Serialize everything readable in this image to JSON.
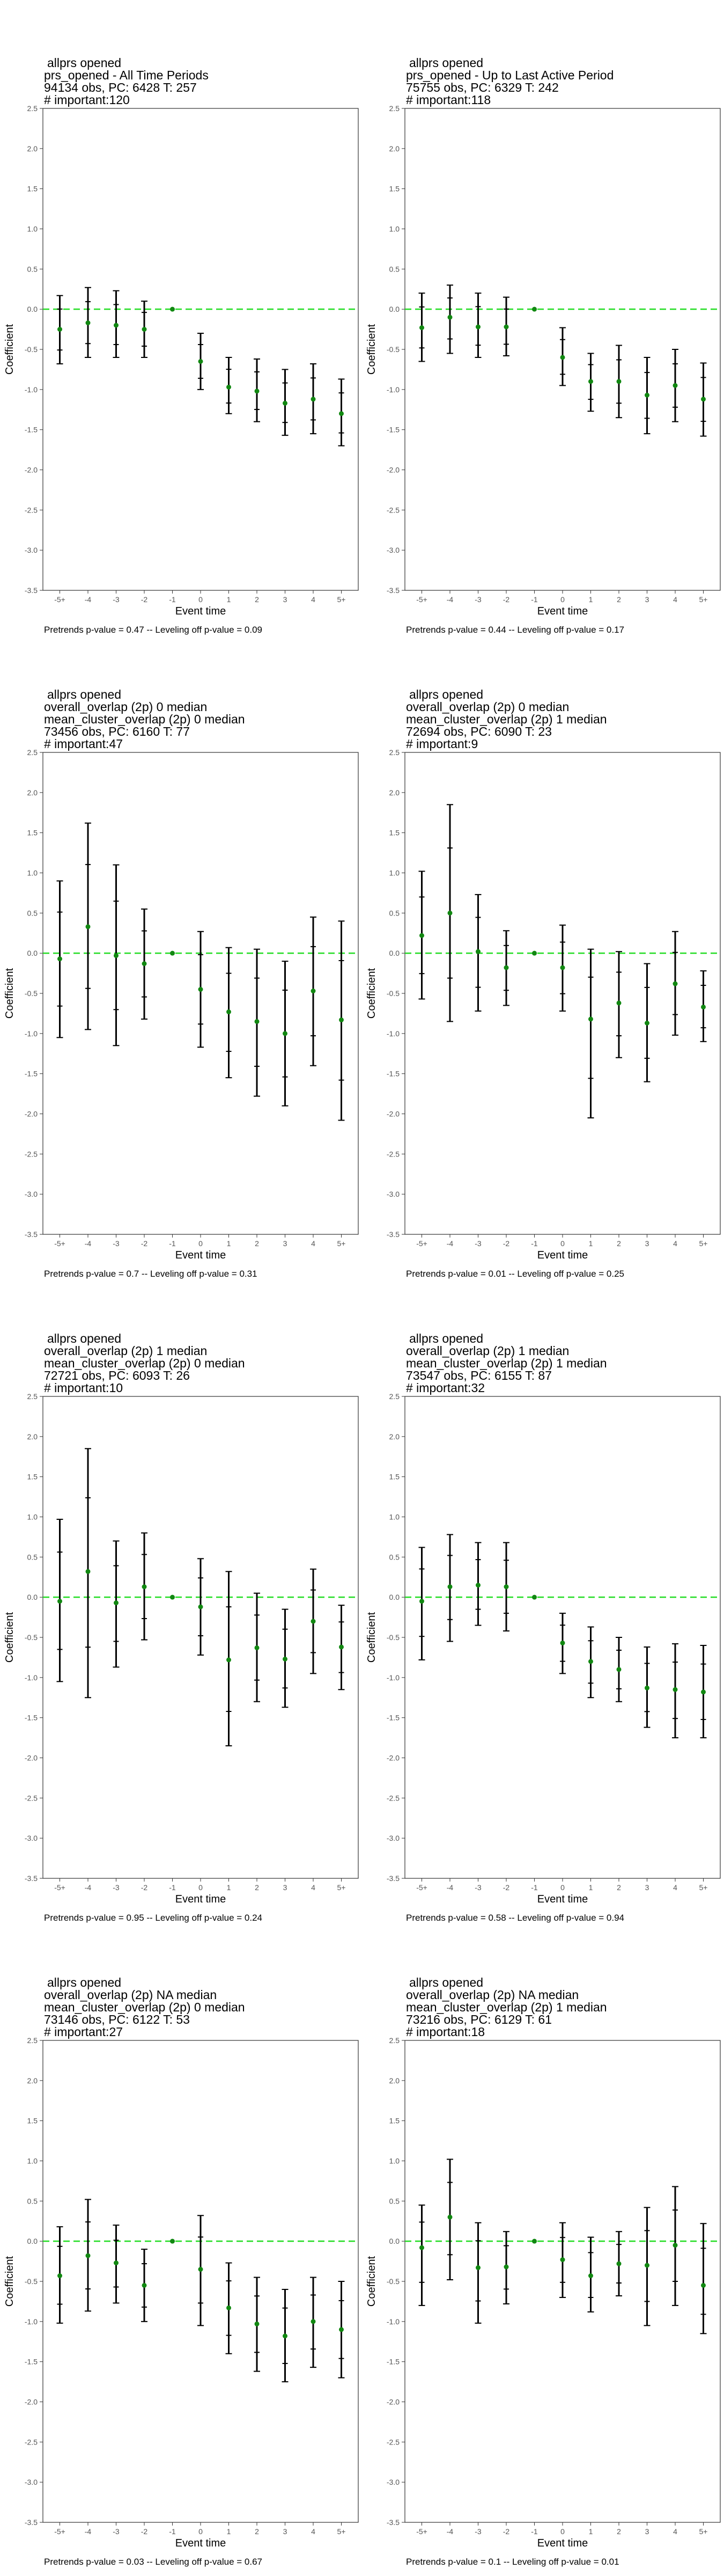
{
  "colors": {
    "zero_line": "#22dd22",
    "point": "#118811",
    "bar": "#000000",
    "axis": "#333333",
    "tick_label": "#555555"
  },
  "chart_data": [
    {
      "type": "scatter",
      "subtype": "event-study-coefficient-plot",
      "title_lines": [
        "allprs opened",
        "prs_opened - All Time Periods",
        "94134 obs, PC: 6428 T: 257",
        "# important:120"
      ],
      "xlabel": "Event time",
      "ylabel": "Coefficient",
      "ylim": [
        -3.5,
        2.5
      ],
      "yticks": [
        "2.5",
        "2.0",
        "1.5",
        "1.0",
        "0.5",
        "0.0",
        "-0.5",
        "-1.0",
        "-1.5",
        "-2.0",
        "-2.5",
        "-3.0",
        "-3.5"
      ],
      "categories": [
        "-5+",
        "-4",
        "-3",
        "-2",
        "-1",
        "0",
        "1",
        "2",
        "3",
        "4",
        "5+"
      ],
      "values": [
        -0.25,
        -0.17,
        -0.2,
        -0.25,
        0.0,
        -0.65,
        -0.97,
        -1.02,
        -1.17,
        -1.12,
        -1.3
      ],
      "ci_low": [
        -0.68,
        -0.6,
        -0.6,
        -0.6,
        null,
        -1.0,
        -1.3,
        -1.4,
        -1.57,
        -1.55,
        -1.7
      ],
      "ci_high": [
        0.17,
        0.27,
        0.23,
        0.1,
        null,
        -0.3,
        -0.6,
        -0.62,
        -0.75,
        -0.68,
        -0.87
      ],
      "caption": "Pretrends p-value = 0.47 -- Leveling off p-value = 0.09"
    },
    {
      "type": "scatter",
      "subtype": "event-study-coefficient-plot",
      "title_lines": [
        "allprs opened",
        "prs_opened - Up to Last Active Period",
        "75755 obs, PC: 6329 T: 242",
        "# important:118"
      ],
      "xlabel": "Event time",
      "ylabel": "Coefficient",
      "ylim": [
        -3.5,
        2.5
      ],
      "yticks": [
        "2.5",
        "2.0",
        "1.5",
        "1.0",
        "0.5",
        "0.0",
        "-0.5",
        "-1.0",
        "-1.5",
        "-2.0",
        "-2.5",
        "-3.0",
        "-3.5"
      ],
      "categories": [
        "-5+",
        "-4",
        "-3",
        "-2",
        "-1",
        "0",
        "1",
        "2",
        "3",
        "4",
        "5+"
      ],
      "values": [
        -0.23,
        -0.1,
        -0.22,
        -0.22,
        0.0,
        -0.6,
        -0.9,
        -0.9,
        -1.07,
        -0.95,
        -1.12
      ],
      "ci_low": [
        -0.65,
        -0.55,
        -0.6,
        -0.58,
        null,
        -0.95,
        -1.27,
        -1.35,
        -1.55,
        -1.4,
        -1.58
      ],
      "ci_high": [
        0.2,
        0.3,
        0.2,
        0.15,
        null,
        -0.23,
        -0.55,
        -0.45,
        -0.6,
        -0.5,
        -0.67
      ],
      "caption": "Pretrends p-value = 0.44 -- Leveling off p-value = 0.17"
    },
    {
      "type": "scatter",
      "subtype": "event-study-coefficient-plot",
      "title_lines": [
        "allprs opened",
        "overall_overlap (2p) 0 median",
        "mean_cluster_overlap (2p) 0 median",
        "73456 obs, PC: 6160 T: 77",
        "# important:47"
      ],
      "xlabel": "Event time",
      "ylabel": "Coefficient",
      "ylim": [
        -3.5,
        2.5
      ],
      "yticks": [
        "2.5",
        "2.0",
        "1.5",
        "1.0",
        "0.5",
        "0.0",
        "-0.5",
        "-1.0",
        "-1.5",
        "-2.0",
        "-2.5",
        "-3.0",
        "-3.5"
      ],
      "categories": [
        "-5+",
        "-4",
        "-3",
        "-2",
        "-1",
        "0",
        "1",
        "2",
        "3",
        "4",
        "5+"
      ],
      "values": [
        -0.07,
        0.33,
        -0.03,
        -0.13,
        0.0,
        -0.45,
        -0.73,
        -0.85,
        -1.0,
        -0.47,
        -0.83
      ],
      "ci_low": [
        -1.05,
        -0.95,
        -1.15,
        -0.82,
        null,
        -1.17,
        -1.55,
        -1.78,
        -1.9,
        -1.4,
        -2.08
      ],
      "ci_high": [
        0.9,
        1.62,
        1.1,
        0.55,
        null,
        0.27,
        0.07,
        0.05,
        -0.1,
        0.45,
        0.4
      ],
      "caption": "Pretrends p-value = 0.7 -- Leveling off p-value = 0.31"
    },
    {
      "type": "scatter",
      "subtype": "event-study-coefficient-plot",
      "title_lines": [
        "allprs opened",
        "overall_overlap (2p) 0 median",
        "mean_cluster_overlap (2p) 1 median",
        "72694 obs, PC: 6090 T: 23",
        "# important:9"
      ],
      "xlabel": "Event time",
      "ylabel": "Coefficient",
      "ylim": [
        -3.5,
        2.5
      ],
      "yticks": [
        "2.5",
        "2.0",
        "1.5",
        "1.0",
        "0.5",
        "0.0",
        "-0.5",
        "-1.0",
        "-1.5",
        "-2.0",
        "-2.5",
        "-3.0",
        "-3.5"
      ],
      "categories": [
        "-5+",
        "-4",
        "-3",
        "-2",
        "-1",
        "0",
        "1",
        "2",
        "3",
        "4",
        "5+"
      ],
      "values": [
        0.22,
        0.5,
        0.02,
        -0.18,
        0.0,
        -0.18,
        -0.82,
        -0.62,
        -0.87,
        -0.38,
        -0.67
      ],
      "ci_low": [
        -0.57,
        -0.85,
        -0.72,
        -0.65,
        null,
        -0.72,
        -2.05,
        -1.3,
        -1.6,
        -1.02,
        -1.1
      ],
      "ci_high": [
        1.02,
        1.85,
        0.73,
        0.28,
        null,
        0.35,
        0.05,
        0.02,
        -0.13,
        0.27,
        -0.22
      ],
      "caption": "Pretrends p-value = 0.01 -- Leveling off p-value = 0.25"
    },
    {
      "type": "scatter",
      "subtype": "event-study-coefficient-plot",
      "title_lines": [
        "allprs opened",
        "overall_overlap (2p) 1 median",
        "mean_cluster_overlap (2p) 0 median",
        "72721 obs, PC: 6093 T: 26",
        "# important:10"
      ],
      "xlabel": "Event time",
      "ylabel": "Coefficient",
      "ylim": [
        -3.5,
        2.5
      ],
      "yticks": [
        "2.5",
        "2.0",
        "1.5",
        "1.0",
        "0.5",
        "0.0",
        "-0.5",
        "-1.0",
        "-1.5",
        "-2.0",
        "-2.5",
        "-3.0",
        "-3.5"
      ],
      "categories": [
        "-5+",
        "-4",
        "-3",
        "-2",
        "-1",
        "0",
        "1",
        "2",
        "3",
        "4",
        "5+"
      ],
      "values": [
        -0.05,
        0.32,
        -0.07,
        0.13,
        0.0,
        -0.12,
        -0.78,
        -0.63,
        -0.77,
        -0.3,
        -0.62
      ],
      "ci_low": [
        -1.05,
        -1.25,
        -0.87,
        -0.53,
        null,
        -0.72,
        -1.85,
        -1.3,
        -1.37,
        -0.95,
        -1.15
      ],
      "ci_high": [
        0.97,
        1.85,
        0.7,
        0.8,
        null,
        0.48,
        0.32,
        0.05,
        -0.15,
        0.35,
        -0.1
      ],
      "caption": "Pretrends p-value = 0.95 -- Leveling off p-value = 0.24"
    },
    {
      "type": "scatter",
      "subtype": "event-study-coefficient-plot",
      "title_lines": [
        "allprs opened",
        "overall_overlap (2p) 1 median",
        "mean_cluster_overlap (2p) 1 median",
        "73547 obs, PC: 6155 T: 87",
        "# important:32"
      ],
      "xlabel": "Event time",
      "ylabel": "Coefficient",
      "ylim": [
        -3.5,
        2.5
      ],
      "yticks": [
        "2.5",
        "2.0",
        "1.5",
        "1.0",
        "0.5",
        "0.0",
        "-0.5",
        "-1.0",
        "-1.5",
        "-2.0",
        "-2.5",
        "-3.0",
        "-3.5"
      ],
      "categories": [
        "-5+",
        "-4",
        "-3",
        "-2",
        "-1",
        "0",
        "1",
        "2",
        "3",
        "4",
        "5+"
      ],
      "values": [
        -0.05,
        0.13,
        0.15,
        0.13,
        0.0,
        -0.57,
        -0.8,
        -0.9,
        -1.13,
        -1.15,
        -1.18
      ],
      "ci_low": [
        -0.78,
        -0.55,
        -0.35,
        -0.42,
        null,
        -0.95,
        -1.25,
        -1.3,
        -1.62,
        -1.75,
        -1.75
      ],
      "ci_high": [
        0.62,
        0.78,
        0.68,
        0.68,
        null,
        -0.2,
        -0.37,
        -0.5,
        -0.62,
        -0.58,
        -0.6
      ],
      "caption": "Pretrends p-value = 0.58 -- Leveling off p-value = 0.94"
    },
    {
      "type": "scatter",
      "subtype": "event-study-coefficient-plot",
      "title_lines": [
        "allprs opened",
        "overall_overlap (2p) NA median",
        "mean_cluster_overlap (2p) 0 median",
        "73146 obs, PC: 6122 T: 53",
        "# important:27"
      ],
      "xlabel": "Event time",
      "ylabel": "Coefficient",
      "ylim": [
        -3.5,
        2.5
      ],
      "yticks": [
        "2.5",
        "2.0",
        "1.5",
        "1.0",
        "0.5",
        "0.0",
        "-0.5",
        "-1.0",
        "-1.5",
        "-2.0",
        "-2.5",
        "-3.0",
        "-3.5"
      ],
      "categories": [
        "-5+",
        "-4",
        "-3",
        "-2",
        "-1",
        "0",
        "1",
        "2",
        "3",
        "4",
        "5+"
      ],
      "values": [
        -0.43,
        -0.18,
        -0.27,
        -0.55,
        0.0,
        -0.35,
        -0.83,
        -1.03,
        -1.18,
        -1.0,
        -1.1
      ],
      "ci_low": [
        -1.02,
        -0.87,
        -0.77,
        -1.0,
        null,
        -1.05,
        -1.4,
        -1.62,
        -1.75,
        -1.57,
        -1.7
      ],
      "ci_high": [
        0.18,
        0.52,
        0.2,
        -0.1,
        null,
        0.32,
        -0.27,
        -0.45,
        -0.6,
        -0.45,
        -0.5
      ],
      "caption": "Pretrends p-value = 0.03 -- Leveling off p-value = 0.67"
    },
    {
      "type": "scatter",
      "subtype": "event-study-coefficient-plot",
      "title_lines": [
        "allprs opened",
        "overall_overlap (2p) NA median",
        "mean_cluster_overlap (2p) 1 median",
        "73216 obs, PC: 6129 T: 61",
        "# important:18"
      ],
      "xlabel": "Event time",
      "ylabel": "Coefficient",
      "ylim": [
        -3.5,
        2.5
      ],
      "yticks": [
        "2.5",
        "2.0",
        "1.5",
        "1.0",
        "0.5",
        "0.0",
        "-0.5",
        "-1.0",
        "-1.5",
        "-2.0",
        "-2.5",
        "-3.0",
        "-3.5"
      ],
      "categories": [
        "-5+",
        "-4",
        "-3",
        "-2",
        "-1",
        "0",
        "1",
        "2",
        "3",
        "4",
        "5+"
      ],
      "values": [
        -0.08,
        0.3,
        -0.33,
        -0.32,
        0.0,
        -0.23,
        -0.43,
        -0.28,
        -0.3,
        -0.05,
        -0.55
      ],
      "ci_low": [
        -0.8,
        -0.48,
        -1.02,
        -0.78,
        null,
        -0.7,
        -0.88,
        -0.68,
        -1.05,
        -0.8,
        -1.15
      ],
      "ci_high": [
        0.45,
        1.02,
        0.23,
        0.12,
        null,
        0.23,
        0.05,
        0.12,
        0.42,
        0.68,
        0.22
      ],
      "caption": "Pretrends p-value = 0.1 -- Leveling off p-value = 0.01"
    }
  ]
}
